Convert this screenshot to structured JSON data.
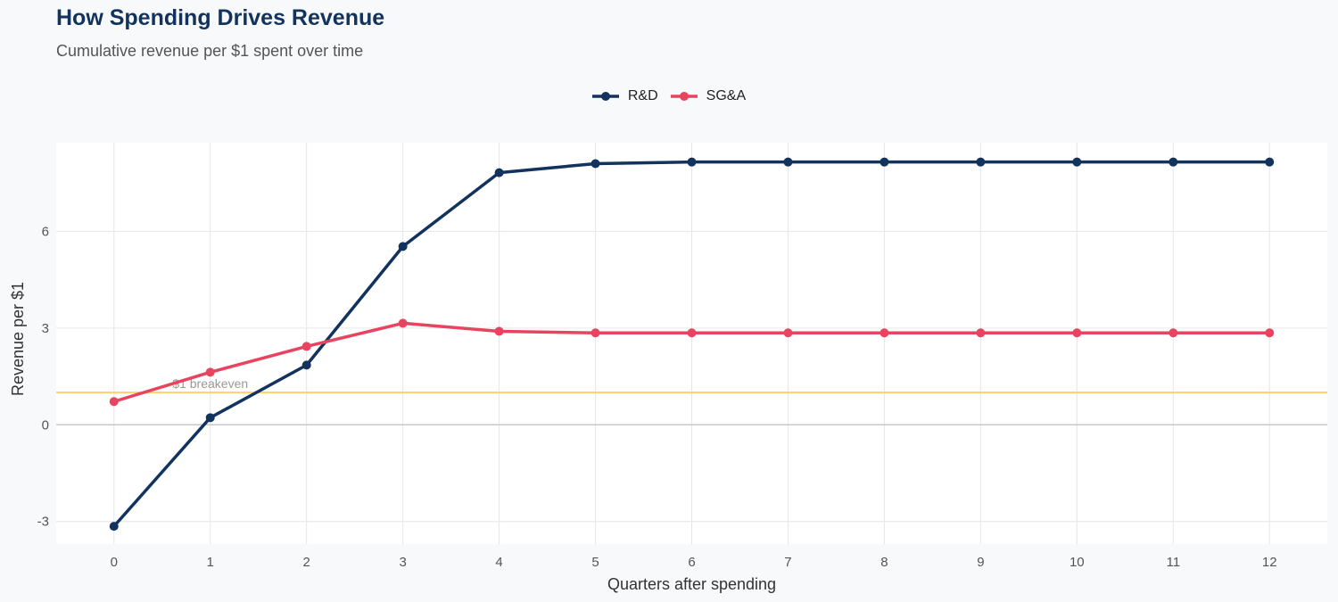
{
  "chart_data": {
    "type": "line",
    "title": "How Spending Drives Revenue",
    "subtitle": "Cumulative revenue per $1 spent over time",
    "xlabel": "Quarters after spending",
    "ylabel": "Revenue per $1",
    "x": [
      0,
      1,
      2,
      3,
      4,
      5,
      6,
      7,
      8,
      9,
      10,
      11,
      12
    ],
    "xlim": [
      -0.6,
      12.6
    ],
    "ylim": [
      -3.7,
      8.75
    ],
    "xticks": [
      0,
      1,
      2,
      3,
      4,
      5,
      6,
      7,
      8,
      9,
      10,
      11,
      12
    ],
    "yticks": [
      -3,
      0,
      3,
      6
    ],
    "grid": true,
    "legend_position": "top",
    "series": [
      {
        "name": "R&D",
        "color": "#12335e",
        "values": [
          -3.15,
          0.22,
          1.85,
          5.53,
          7.82,
          8.1,
          8.15,
          8.15,
          8.15,
          8.15,
          8.15,
          8.15,
          8.15
        ]
      },
      {
        "name": "SG&A",
        "color": "#e8445f",
        "values": [
          0.72,
          1.63,
          2.43,
          3.15,
          2.9,
          2.85,
          2.85,
          2.85,
          2.85,
          2.85,
          2.85,
          2.85,
          2.85
        ]
      }
    ],
    "reference_line": {
      "y": 1,
      "label": "$1 breakeven",
      "color": "#ffd166"
    }
  }
}
